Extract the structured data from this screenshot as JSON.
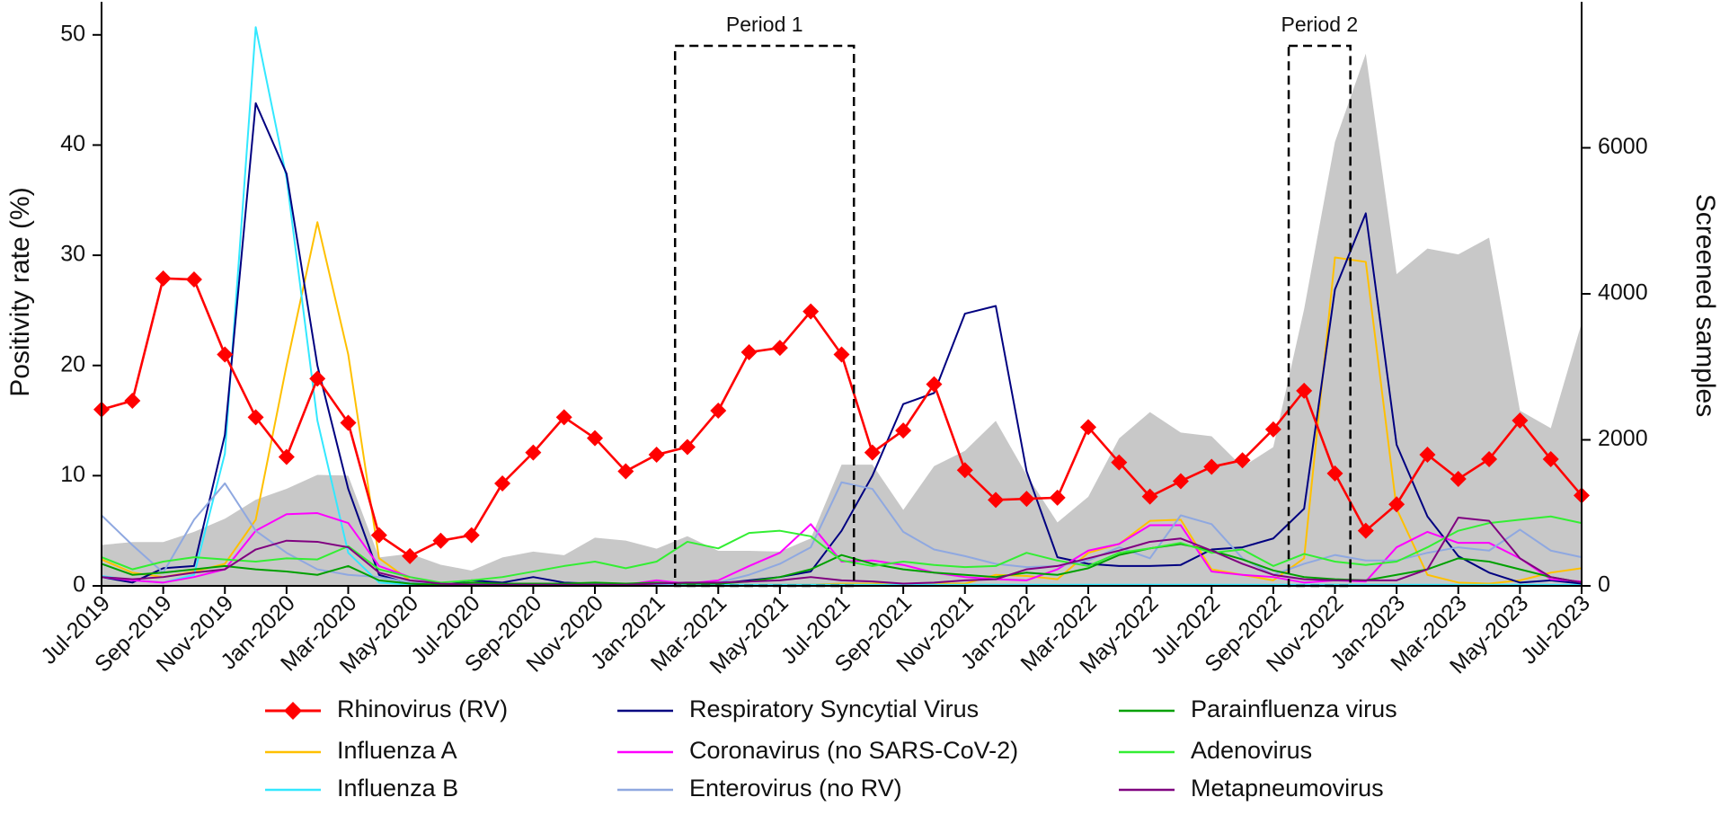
{
  "chart_data": {
    "type": "line",
    "ylabel": "Positivity rate (%)",
    "y2label": "Screened samples",
    "categories": [
      "Jul-2019",
      null,
      "Sep-2019",
      null,
      "Nov-2019",
      null,
      "Jan-2020",
      null,
      "Mar-2020",
      null,
      "May-2020",
      null,
      "Jul-2020",
      null,
      "Sep-2020",
      null,
      "Nov-2020",
      null,
      "Jan-2021",
      null,
      "Mar-2021",
      null,
      "May-2021",
      null,
      "Jul-2021",
      null,
      "Sep-2021",
      null,
      "Nov-2021",
      null,
      "Jan-2022",
      null,
      "Mar-2022",
      null,
      "May-2022",
      null,
      "Jul-2022",
      null,
      "Sep-2022",
      null,
      "Nov-2022",
      null,
      "Jan-2023",
      null,
      "Mar-2023",
      null,
      "May-2023",
      null,
      "Jul-2023"
    ],
    "ylim": [
      0,
      53
    ],
    "yticks": [
      0,
      10,
      20,
      30,
      40,
      50
    ],
    "y2lim": [
      0,
      8000
    ],
    "y2ticks": [
      0,
      2000,
      4000,
      6000
    ],
    "series": [
      {
        "name": "Rhinovirus (RV)",
        "color": "#ff0000",
        "marker": "diamond",
        "values": [
          16.0,
          16.8,
          27.9,
          27.8,
          21.0,
          15.3,
          11.7,
          18.8,
          14.8,
          4.6,
          2.7,
          4.1,
          4.6,
          9.3,
          12.1,
          15.3,
          13.4,
          10.4,
          11.9,
          12.6,
          15.9,
          21.2,
          21.6,
          24.9,
          21.0,
          12.1,
          14.1,
          18.3,
          10.5,
          7.8,
          7.9,
          8.0,
          14.4,
          11.2,
          8.1,
          9.5,
          10.8,
          11.4,
          14.2,
          17.7,
          10.2,
          5.0,
          7.4,
          11.9,
          9.7,
          11.5,
          15.0,
          11.5,
          8.2
        ]
      },
      {
        "name": "Influenza A",
        "color": "#ffc000",
        "values": [
          2.4,
          1.2,
          0.8,
          1.3,
          2.0,
          6.0,
          20.0,
          33.0,
          21.0,
          2.5,
          0.5,
          0.1,
          0.1,
          0.1,
          0.1,
          0.1,
          0.1,
          0.1,
          0.1,
          0.1,
          0.1,
          0.1,
          0.1,
          0.1,
          0.2,
          0.2,
          0.2,
          0.2,
          0.2,
          1.0,
          0.9,
          0.6,
          3.0,
          3.8,
          5.9,
          6.0,
          1.5,
          1.0,
          0.5,
          2.5,
          29.8,
          29.4,
          7.0,
          1.0,
          0.3,
          0.2,
          0.5,
          1.2,
          1.6
        ]
      },
      {
        "name": "Influenza B",
        "color": "#33e8ff",
        "values": [
          0.9,
          0.5,
          0.3,
          1.0,
          12.0,
          50.7,
          37.0,
          15.0,
          3.0,
          0.3,
          0.1,
          0.1,
          0.1,
          0.1,
          0.1,
          0.1,
          0.1,
          0.1,
          0.1,
          0.1,
          0.1,
          0.1,
          0.1,
          0.1,
          0.1,
          0.1,
          0.1,
          0.1,
          0.1,
          0.1,
          0.1,
          0.1,
          0.1,
          0.1,
          0.1,
          0.1,
          0.1,
          0.1,
          0.1,
          0.1,
          0.1,
          0.1,
          0.1,
          0.1,
          0.1,
          0.1,
          0.1,
          0.1,
          0.1
        ]
      },
      {
        "name": "Respiratory Syncytial Virus",
        "color": "#000080",
        "values": [
          0.8,
          0.3,
          1.6,
          1.8,
          13.7,
          43.8,
          37.4,
          20.0,
          8.8,
          1.0,
          0.2,
          0.1,
          0.5,
          0.3,
          0.8,
          0.3,
          0.2,
          0.1,
          0.2,
          0.2,
          0.2,
          0.5,
          0.8,
          1.3,
          5.0,
          10.0,
          16.5,
          17.5,
          24.7,
          25.4,
          10.4,
          2.6,
          2.0,
          1.8,
          1.8,
          1.9,
          3.3,
          3.5,
          4.3,
          7.0,
          26.9,
          33.8,
          12.8,
          6.3,
          2.7,
          1.2,
          0.3,
          0.5,
          0.2
        ]
      },
      {
        "name": "Coronavirus (no SARS-CoV-2)",
        "color": "#ff00ff",
        "values": [
          0.8,
          0.5,
          0.3,
          0.8,
          1.5,
          5.0,
          6.5,
          6.6,
          5.7,
          1.8,
          0.8,
          0.2,
          0.2,
          0.1,
          0.1,
          0.1,
          0.1,
          0.1,
          0.5,
          0.2,
          0.5,
          1.8,
          3.0,
          5.6,
          2.2,
          2.3,
          1.9,
          1.2,
          0.8,
          0.6,
          0.5,
          1.5,
          3.2,
          3.8,
          5.5,
          5.5,
          1.3,
          1.0,
          0.8,
          0.3,
          0.5,
          0.4,
          3.5,
          4.9,
          3.9,
          3.9,
          2.5,
          0.6,
          0.4
        ]
      },
      {
        "name": "Enterovirus (no RV)",
        "color": "#8fa8e0",
        "values": [
          6.4,
          3.7,
          1.2,
          6.0,
          9.3,
          5.0,
          3.0,
          1.5,
          1.0,
          0.8,
          0.3,
          0.2,
          0.1,
          0.1,
          0.1,
          0.1,
          0.1,
          0.1,
          0.2,
          0.2,
          0.3,
          1.0,
          2.0,
          3.5,
          9.4,
          8.8,
          4.9,
          3.3,
          2.7,
          2.0,
          1.7,
          1.8,
          2.3,
          3.5,
          2.5,
          6.4,
          5.6,
          2.5,
          1.0,
          2.0,
          2.8,
          2.3,
          2.3,
          3.0,
          3.5,
          3.2,
          5.1,
          3.2,
          2.6
        ]
      },
      {
        "name": "Parainfluenza virus",
        "color": "#00a000",
        "values": [
          2.0,
          1.0,
          1.2,
          1.5,
          1.8,
          1.5,
          1.3,
          1.0,
          1.8,
          0.5,
          0.2,
          0.1,
          0.3,
          0.2,
          0.2,
          0.2,
          0.3,
          0.2,
          0.3,
          0.2,
          0.2,
          0.4,
          0.8,
          1.5,
          2.8,
          2.0,
          1.5,
          1.2,
          1.0,
          0.8,
          1.2,
          1.0,
          1.6,
          2.8,
          3.4,
          3.8,
          3.2,
          2.4,
          1.4,
          0.8,
          0.6,
          0.5,
          1.0,
          1.5,
          2.5,
          2.2,
          1.5,
          0.8,
          0.3
        ]
      },
      {
        "name": "Adenovirus",
        "color": "#33ee33",
        "values": [
          2.6,
          1.5,
          2.2,
          2.6,
          2.4,
          2.2,
          2.5,
          2.4,
          3.6,
          1.5,
          0.8,
          0.3,
          0.5,
          0.8,
          1.3,
          1.8,
          2.2,
          1.6,
          2.2,
          4.0,
          3.4,
          4.8,
          5.0,
          4.5,
          2.3,
          1.8,
          2.2,
          1.9,
          1.7,
          1.8,
          3.0,
          2.3,
          1.8,
          3.0,
          3.4,
          3.9,
          3.0,
          3.3,
          1.8,
          2.9,
          2.2,
          1.9,
          2.2,
          3.5,
          5.0,
          5.7,
          6.0,
          6.3,
          5.7
        ]
      },
      {
        "name": "Metapneumovirus",
        "color": "#800080",
        "values": [
          0.8,
          0.6,
          0.8,
          1.2,
          1.5,
          3.3,
          4.1,
          4.0,
          3.5,
          1.2,
          0.5,
          0.2,
          0.1,
          0.1,
          0.1,
          0.1,
          0.1,
          0.1,
          0.2,
          0.3,
          0.3,
          0.4,
          0.5,
          0.8,
          0.5,
          0.4,
          0.2,
          0.3,
          0.5,
          0.6,
          1.5,
          1.8,
          2.5,
          3.2,
          4.0,
          4.3,
          3.2,
          2.0,
          1.0,
          0.6,
          0.5,
          0.5,
          0.5,
          1.5,
          6.2,
          5.9,
          2.5,
          0.8,
          0.3
        ]
      },
      {
        "axis": "y2",
        "fill": true,
        "color": "#c8c8c8",
        "values": [
          560,
          600,
          600,
          740,
          920,
          1180,
          1330,
          1520,
          1510,
          390,
          440,
          290,
          210,
          390,
          470,
          420,
          660,
          620,
          510,
          680,
          480,
          480,
          470,
          650,
          1660,
          1660,
          1040,
          1640,
          1850,
          2260,
          1520,
          870,
          1220,
          2020,
          2380,
          2100,
          2050,
          1630,
          1900,
          3790,
          6080,
          7290,
          4270,
          4620,
          4540,
          4770,
          2400,
          2160,
          3600
        ]
      }
    ],
    "annotations": [
      {
        "label": "Period 1",
        "x_start": 18.6,
        "x_end": 24.4,
        "y_top": 49
      },
      {
        "label": "Period 2",
        "x_start": 38.5,
        "x_end": 40.5,
        "y_top": 49
      }
    ]
  }
}
